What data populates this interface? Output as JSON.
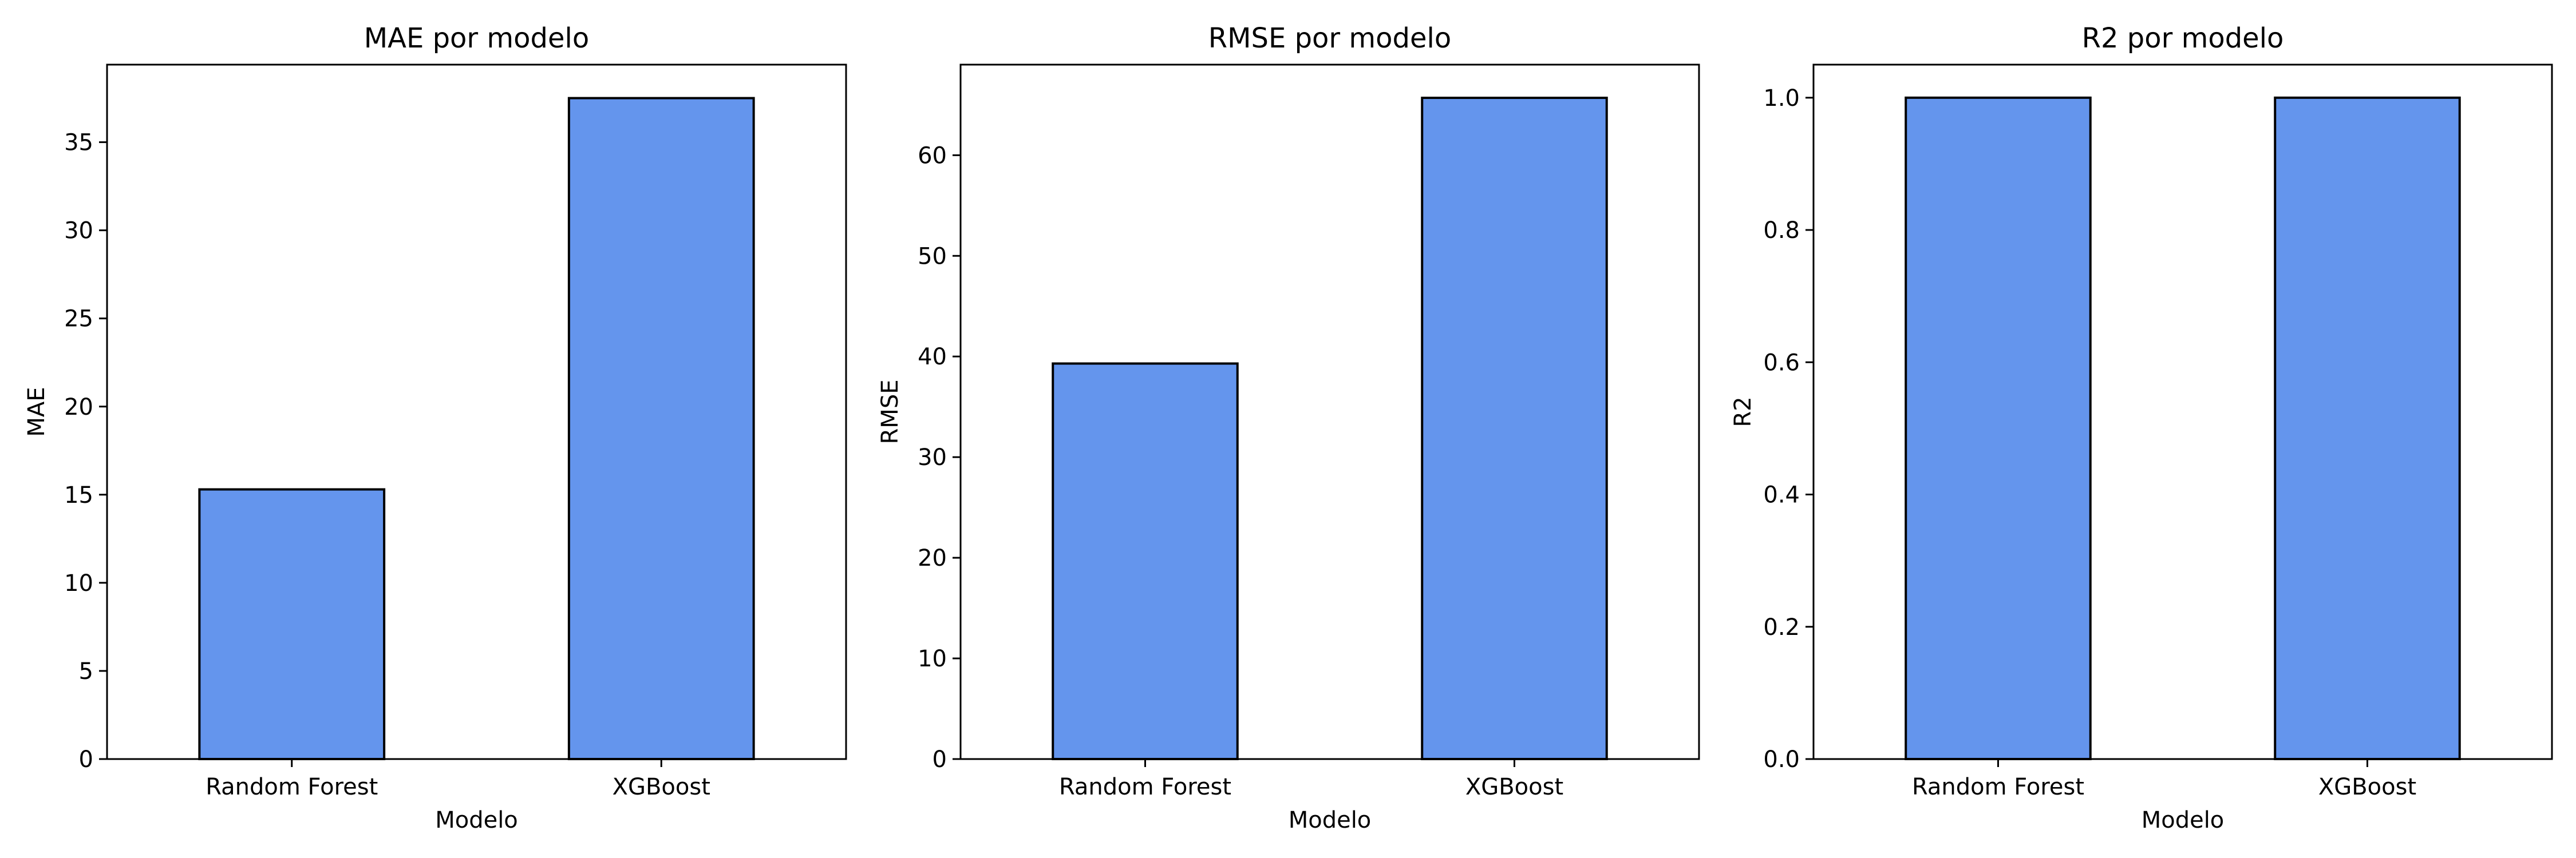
{
  "chart_data": [
    {
      "type": "bar",
      "title": "MAE por modelo",
      "xlabel": "Modelo",
      "ylabel": "MAE",
      "categories": [
        "Random Forest",
        "XGBoost"
      ],
      "values": [
        15.3,
        37.5
      ],
      "ylim": [
        0,
        39.4
      ],
      "yticks": [
        0,
        5,
        10,
        15,
        20,
        25,
        30,
        35
      ],
      "ytick_labels": [
        "0",
        "5",
        "10",
        "15",
        "20",
        "25",
        "30",
        "35"
      ],
      "bar_color": "#6495ED",
      "edge_color": "#000000",
      "grid": false
    },
    {
      "type": "bar",
      "title": "RMSE por modelo",
      "xlabel": "Modelo",
      "ylabel": "RMSE",
      "categories": [
        "Random Forest",
        "XGBoost"
      ],
      "values": [
        39.3,
        65.7
      ],
      "ylim": [
        0,
        69
      ],
      "yticks": [
        0,
        10,
        20,
        30,
        40,
        50,
        60
      ],
      "ytick_labels": [
        "0",
        "10",
        "20",
        "30",
        "40",
        "50",
        "60"
      ],
      "bar_color": "#6495ED",
      "edge_color": "#000000",
      "grid": false
    },
    {
      "type": "bar",
      "title": "R2 por modelo",
      "xlabel": "Modelo",
      "ylabel": "R2",
      "categories": [
        "Random Forest",
        "XGBoost"
      ],
      "values": [
        1.0,
        1.0
      ],
      "ylim": [
        0,
        1.05
      ],
      "yticks": [
        0,
        0.2,
        0.4,
        0.6,
        0.8,
        1.0
      ],
      "ytick_labels": [
        "0.0",
        "0.2",
        "0.4",
        "0.6",
        "0.8",
        "1.0"
      ],
      "bar_color": "#6495ED",
      "edge_color": "#000000",
      "grid": false
    }
  ]
}
